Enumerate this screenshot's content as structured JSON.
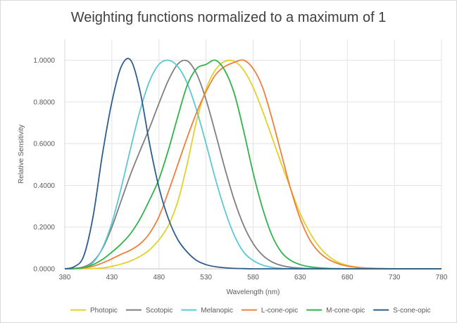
{
  "chart_data": {
    "type": "line",
    "title": "Weighting functions normalized to a maximum of 1",
    "xlabel": "Wavelength (nm)",
    "ylabel": "Relative Sensitivity",
    "xlim": [
      380,
      780
    ],
    "ylim": [
      0,
      1.1
    ],
    "xticks": [
      380,
      430,
      480,
      530,
      580,
      630,
      680,
      730,
      780
    ],
    "xtick_labels": [
      "380",
      "430",
      "480",
      "530",
      "580",
      "630",
      "680",
      "730",
      "780"
    ],
    "yticks": [
      0,
      0.2,
      0.4,
      0.6,
      0.8,
      1.0
    ],
    "ytick_labels": [
      "0.0000",
      "0.2000",
      "0.4000",
      "0.6000",
      "0.8000",
      "1.0000"
    ],
    "grid": "vertical-and-horizontal",
    "legend_position": "bottom",
    "x": [
      380,
      390,
      400,
      410,
      420,
      430,
      440,
      450,
      460,
      470,
      480,
      490,
      500,
      510,
      520,
      530,
      540,
      550,
      560,
      570,
      580,
      590,
      600,
      610,
      620,
      630,
      640,
      650,
      660,
      670,
      680,
      690,
      700,
      720,
      740,
      760,
      780
    ],
    "series": [
      {
        "name": "Photopic",
        "color": "#e3d02a",
        "values": [
          0.0,
          0.0001,
          0.0004,
          0.0012,
          0.004,
          0.0116,
          0.023,
          0.038,
          0.06,
          0.091,
          0.139,
          0.208,
          0.323,
          0.503,
          0.71,
          0.862,
          0.954,
          0.995,
          0.995,
          0.952,
          0.87,
          0.757,
          0.631,
          0.503,
          0.381,
          0.265,
          0.175,
          0.107,
          0.061,
          0.032,
          0.017,
          0.0082,
          0.0041,
          0.001,
          0.0002,
          0.0,
          0.0
        ]
      },
      {
        "name": "Scotopic",
        "color": "#7f7f7f",
        "values": [
          0.0006,
          0.0022,
          0.0093,
          0.0348,
          0.0966,
          0.1998,
          0.3281,
          0.455,
          0.567,
          0.676,
          0.793,
          0.904,
          0.982,
          0.997,
          0.935,
          0.811,
          0.65,
          0.481,
          0.3288,
          0.2076,
          0.1212,
          0.0655,
          0.0332,
          0.0159,
          0.0074,
          0.0033,
          0.0015,
          0.0007,
          0.0003,
          0.0001,
          0.0,
          0.0,
          0.0,
          0.0,
          0.0,
          0.0,
          0.0
        ]
      },
      {
        "name": "Melanopic",
        "color": "#5cc8d4",
        "values": [
          0.0,
          0.001,
          0.006,
          0.03,
          0.1,
          0.22,
          0.39,
          0.58,
          0.76,
          0.9,
          0.98,
          1.0,
          0.97,
          0.89,
          0.76,
          0.6,
          0.43,
          0.28,
          0.16,
          0.08,
          0.04,
          0.018,
          0.007,
          0.002,
          0.001,
          0.0,
          0.0,
          0.0,
          0.0,
          0.0,
          0.0,
          0.0,
          0.0,
          0.0,
          0.0,
          0.0,
          0.0
        ]
      },
      {
        "name": "L-cone-opic",
        "color": "#f07f3c",
        "values": [
          0.0,
          0.001,
          0.004,
          0.012,
          0.028,
          0.048,
          0.07,
          0.09,
          0.12,
          0.17,
          0.25,
          0.37,
          0.5,
          0.63,
          0.75,
          0.85,
          0.93,
          0.97,
          0.99,
          1.0,
          0.96,
          0.87,
          0.72,
          0.55,
          0.38,
          0.24,
          0.14,
          0.08,
          0.045,
          0.025,
          0.013,
          0.007,
          0.0035,
          0.001,
          0.0002,
          0.0,
          0.0
        ]
      },
      {
        "name": "M-cone-opic",
        "color": "#2fb34a",
        "values": [
          0.0,
          0.001,
          0.006,
          0.02,
          0.045,
          0.08,
          0.12,
          0.17,
          0.24,
          0.33,
          0.43,
          0.57,
          0.73,
          0.88,
          0.96,
          0.98,
          1.0,
          0.95,
          0.84,
          0.66,
          0.46,
          0.29,
          0.16,
          0.08,
          0.04,
          0.02,
          0.01,
          0.005,
          0.002,
          0.001,
          0.0,
          0.0,
          0.0,
          0.0,
          0.0,
          0.0,
          0.0
        ]
      },
      {
        "name": "S-cone-opic",
        "color": "#2e5d8e",
        "values": [
          0.0,
          0.01,
          0.06,
          0.25,
          0.55,
          0.8,
          0.97,
          1.0,
          0.85,
          0.6,
          0.39,
          0.24,
          0.14,
          0.08,
          0.04,
          0.02,
          0.01,
          0.005,
          0.002,
          0.001,
          0.0,
          0.0,
          0.0,
          0.0,
          0.0,
          0.0,
          0.0,
          0.0,
          0.0,
          0.0,
          0.0,
          0.0,
          0.0,
          0.0,
          0.0,
          0.0,
          0.0
        ]
      }
    ]
  }
}
